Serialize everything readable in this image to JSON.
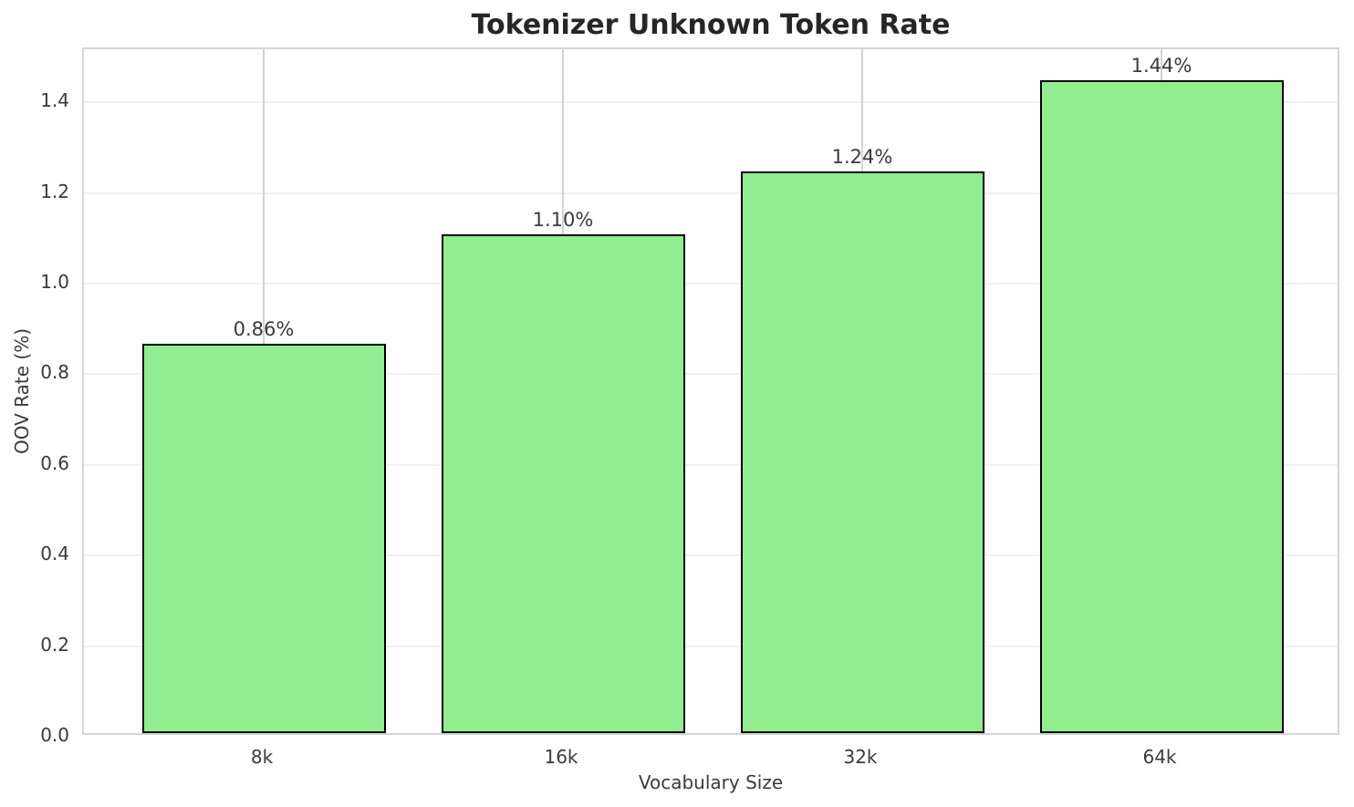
{
  "chart_data": {
    "type": "bar",
    "title": "Tokenizer Unknown Token Rate",
    "xlabel": "Vocabulary Size",
    "ylabel": "OOV Rate (%)",
    "categories": [
      "8k",
      "16k",
      "32k",
      "64k"
    ],
    "values": [
      0.86,
      1.1,
      1.24,
      1.44
    ],
    "bar_labels": [
      "0.86%",
      "1.10%",
      "1.24%",
      "1.44%"
    ],
    "ylim": [
      0,
      1.517
    ],
    "yticks": [
      0.0,
      0.2,
      0.4,
      0.6,
      0.8,
      1.0,
      1.2,
      1.4
    ],
    "ytick_labels": [
      "0.0",
      "0.2",
      "0.4",
      "0.6",
      "0.8",
      "1.0",
      "1.2",
      "1.4"
    ],
    "grid": true,
    "legend_position": "none",
    "colors": {
      "bar_fill": "#90ee90",
      "bar_edge": "#000000",
      "h_grid": "#f0f0f0",
      "v_grid": "#d2d2d2",
      "spine": "#d5d5d5",
      "text": "#3a3a3a",
      "title": "#262626",
      "background": "#ffffff"
    }
  }
}
